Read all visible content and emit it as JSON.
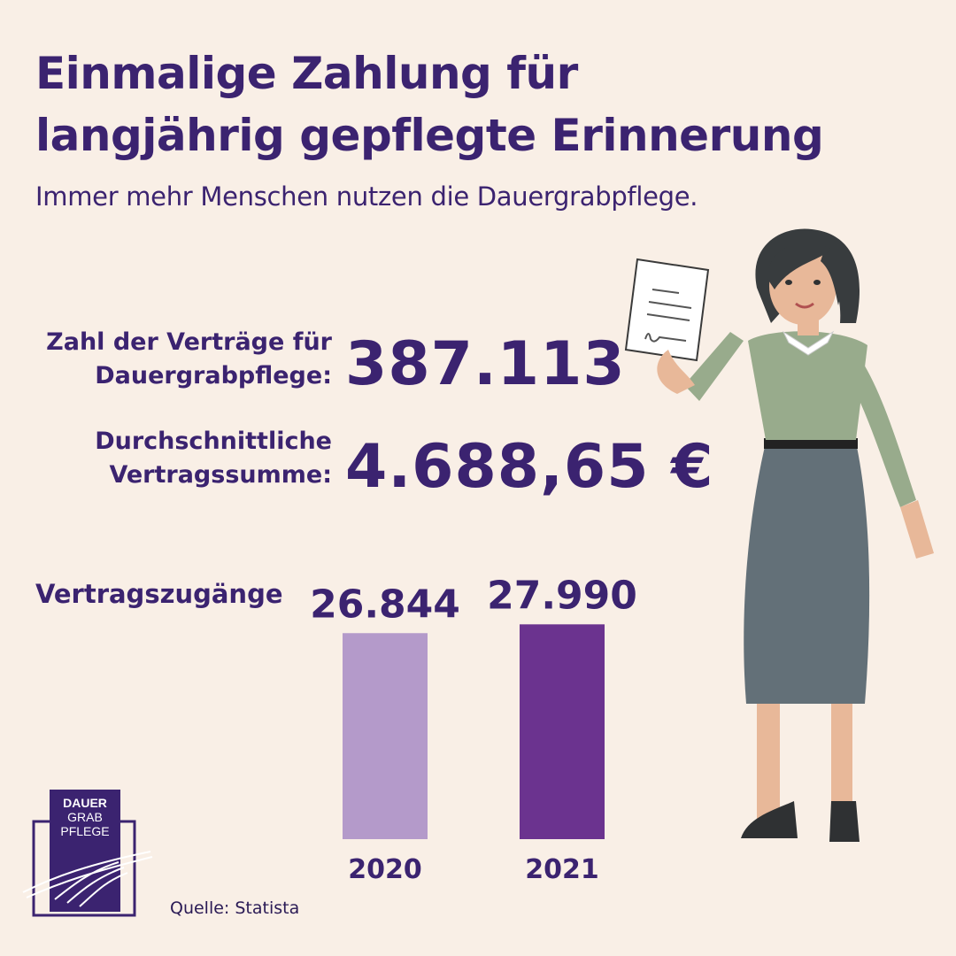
{
  "title_line1": "Einmalige Zahlung für",
  "title_line2": "langjährig gepflegte Erinnerung",
  "subtitle": "Immer mehr Menschen nutzen die Dauergrabpflege.",
  "stats": [
    {
      "label_line1": "Zahl der Verträge für",
      "label_line2": "Dauergrabpflege:",
      "value": "387.113"
    },
    {
      "label_line1": "Durchschnittliche",
      "label_line2": "Vertragssumme:",
      "value": "4.688,65 €"
    }
  ],
  "chart_label": "Vertragszugänge",
  "chart_data": {
    "type": "bar",
    "categories": [
      "2020",
      "2021"
    ],
    "values": [
      26844,
      27990
    ],
    "value_labels": [
      "26.844",
      "27.990"
    ],
    "colors": [
      "#b49aca",
      "#6b338f"
    ],
    "ylabel": "",
    "xlabel": "",
    "title": ""
  },
  "source": "Quelle: Statista",
  "logo": {
    "line1": "DAUER",
    "line2": "GRAB",
    "line3": "PFLEGE"
  },
  "colors": {
    "background": "#f9efe6",
    "text": "#3b2370",
    "logo": "#3b2370"
  }
}
